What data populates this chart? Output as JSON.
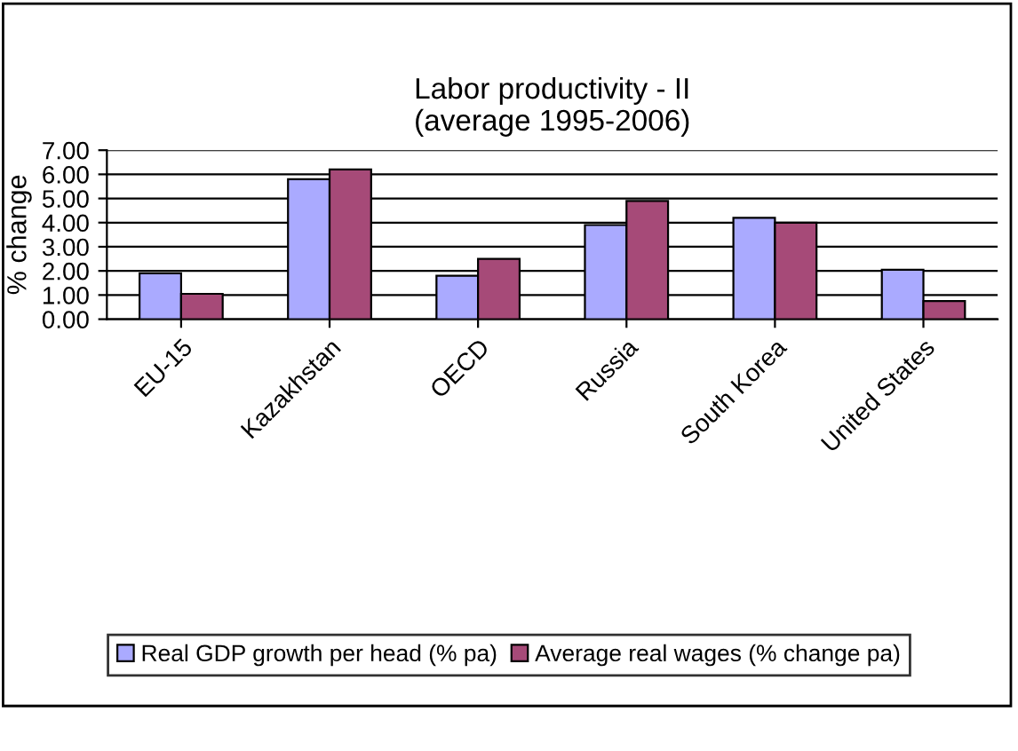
{
  "chart_data": {
    "type": "bar",
    "title": "Labor productivity - II\n(average 1995-2006)",
    "ylabel": "% change",
    "categories": [
      "EU-15",
      "Kazakhstan",
      "OECD",
      "Russia",
      "South Korea",
      "United States"
    ],
    "series": [
      {
        "name": "Real GDP growth per head (% pa)",
        "color": "#aaaaff",
        "values": [
          1.9,
          5.8,
          1.8,
          3.9,
          4.2,
          2.05
        ]
      },
      {
        "name": "Average real wages (% change pa)",
        "color": "#a64a78",
        "values": [
          1.05,
          6.2,
          2.5,
          4.9,
          4.0,
          0.75
        ]
      }
    ],
    "ylim": [
      0,
      7
    ],
    "yticks": [
      {
        "value": 0,
        "label": "0.00"
      },
      {
        "value": 1,
        "label": "1.00"
      },
      {
        "value": 2,
        "label": "2.00"
      },
      {
        "value": 3,
        "label": "3.00"
      },
      {
        "value": 4,
        "label": "4.00"
      },
      {
        "value": 5,
        "label": "5.00"
      },
      {
        "value": 6,
        "label": "6.00"
      },
      {
        "value": 7,
        "label": "7.00"
      }
    ],
    "grid": "y",
    "legend": "bottom"
  }
}
